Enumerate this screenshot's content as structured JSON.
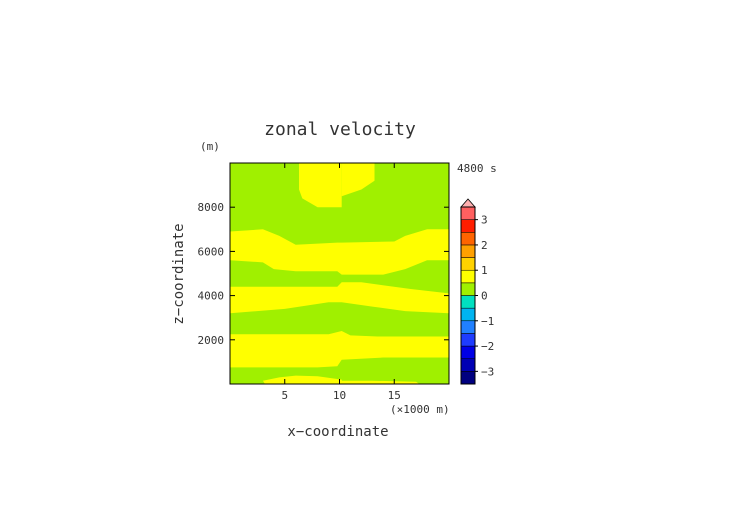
{
  "chart_data": {
    "type": "heatmap",
    "title": "zonal velocity",
    "time_label": "4800 s",
    "xlabel": "x−coordinate",
    "x_unit": "(×1000 m)",
    "ylabel": "z−coordinate",
    "y_unit": "(m)",
    "xlim": [
      0,
      20
    ],
    "ylim": [
      0,
      10000
    ],
    "x_ticks": [
      {
        "value": 5,
        "label": "5"
      },
      {
        "value": 10,
        "label": "10"
      },
      {
        "value": 15,
        "label": "15"
      }
    ],
    "y_ticks": [
      {
        "value": 2000,
        "label": "2000"
      },
      {
        "value": 4000,
        "label": "4000"
      },
      {
        "value": 6000,
        "label": "6000"
      },
      {
        "value": 8000,
        "label": "8000"
      }
    ],
    "colorbar": {
      "levels": [
        -3.5,
        -3.0,
        -2.5,
        -2.0,
        -1.5,
        -1.0,
        -0.5,
        0,
        0.5,
        1.0,
        1.5,
        2.0,
        2.5,
        3.0,
        3.5
      ],
      "colors": [
        "#000080",
        "#0000b4",
        "#0000e6",
        "#1e3cff",
        "#2080ff",
        "#00b4f0",
        "#00e0c0",
        "#a0f000",
        "#ffff00",
        "#ffd200",
        "#ffa000",
        "#ff6400",
        "#ff1e00",
        "#ff6060",
        "#ffb0b0"
      ],
      "tick_labels": [
        "−3",
        "−2",
        "−1",
        "0",
        "1",
        "2",
        "3"
      ],
      "tick_values": [
        -3,
        -2,
        -1,
        0,
        1,
        2,
        3
      ],
      "top_extend": true
    },
    "regions": [
      {
        "value_range": [
          -0.5,
          0
        ],
        "color": "#a0f000",
        "polygon": [
          [
            0,
            10000
          ],
          [
            20,
            10000
          ],
          [
            20,
            0
          ],
          [
            0,
            0
          ]
        ]
      },
      {
        "value_range": [
          0,
          0.5
        ],
        "color": "#ffff00",
        "polygon": [
          [
            3.2,
            0
          ],
          [
            20,
            0
          ],
          [
            20,
            0.14
          ],
          [
            17.3,
            0.14
          ],
          [
            17.0,
            100
          ],
          [
            13.0,
            150
          ],
          [
            10.2,
            150
          ],
          [
            10.2,
            200
          ],
          [
            8.0,
            350
          ],
          [
            6.0,
            380
          ],
          [
            4.5,
            300
          ],
          [
            3.0,
            150
          ]
        ]
      },
      {
        "value_range": [
          0,
          0.5
        ],
        "color": "#ffff00",
        "polygon": [
          [
            0,
            750
          ],
          [
            8.0,
            750
          ],
          [
            9.8,
            800
          ],
          [
            10.2,
            1100
          ],
          [
            14.0,
            1200
          ],
          [
            20,
            1200
          ],
          [
            20,
            2150
          ],
          [
            13.5,
            2150
          ],
          [
            11.0,
            2200
          ],
          [
            10.2,
            2400
          ],
          [
            9.0,
            2250
          ],
          [
            0,
            2250
          ]
        ]
      },
      {
        "value_range": [
          0,
          0.5
        ],
        "color": "#ffff00",
        "polygon": [
          [
            0,
            3200
          ],
          [
            5.0,
            3400
          ],
          [
            9.0,
            3700
          ],
          [
            10.2,
            3700
          ],
          [
            13.0,
            3500
          ],
          [
            16.0,
            3300
          ],
          [
            20,
            3200
          ],
          [
            20,
            4100
          ],
          [
            16.5,
            4300
          ],
          [
            12.0,
            4600
          ],
          [
            10.2,
            4600
          ],
          [
            9.8,
            4400
          ],
          [
            5.0,
            4400
          ],
          [
            0,
            4400
          ]
        ]
      },
      {
        "value_range": [
          0,
          0.5
        ],
        "color": "#ffff00",
        "polygon": [
          [
            0,
            5600
          ],
          [
            3.0,
            5500
          ],
          [
            4.0,
            5200
          ],
          [
            6.0,
            5100
          ],
          [
            9.8,
            5100
          ],
          [
            10.2,
            4950
          ],
          [
            14.0,
            4950
          ],
          [
            16.0,
            5200
          ],
          [
            18.0,
            5600
          ],
          [
            20,
            5600
          ],
          [
            20,
            7000
          ],
          [
            18.0,
            7000
          ],
          [
            16.0,
            6700
          ],
          [
            15.0,
            6450
          ],
          [
            10.2,
            6400
          ],
          [
            9.8,
            6400
          ],
          [
            6.0,
            6300
          ],
          [
            4.5,
            6700
          ],
          [
            3.0,
            7000
          ],
          [
            0,
            6900
          ]
        ]
      },
      {
        "value_range": [
          0,
          0.5
        ],
        "color": "#ffff00",
        "polygon": [
          [
            6.3,
            10000
          ],
          [
            10.2,
            10000
          ],
          [
            10.2,
            8000
          ],
          [
            8.0,
            8000
          ],
          [
            6.6,
            8400
          ],
          [
            6.3,
            8800
          ]
        ]
      },
      {
        "value_range": [
          0,
          0.5
        ],
        "color": "#ffff00",
        "polygon": [
          [
            10.2,
            10000
          ],
          [
            13.2,
            10000
          ],
          [
            13.2,
            9200
          ],
          [
            12.0,
            8800
          ],
          [
            10.2,
            8500
          ]
        ]
      }
    ]
  }
}
